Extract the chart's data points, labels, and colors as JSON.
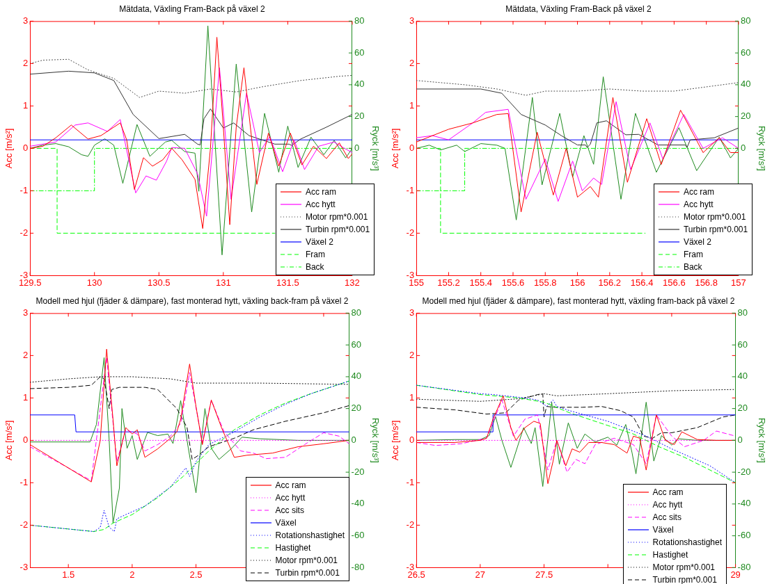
{
  "chart_data": [
    {
      "type": "line",
      "title": "Mätdata, Växling Fram-Back på växel 2",
      "ylabel": "Acc [m/s²]",
      "y2label": "Ryck [m/s³]",
      "xlim": [
        129.5,
        132
      ],
      "xticks": [
        129.5,
        130,
        130.5,
        131,
        131.5,
        132
      ],
      "ylim": [
        -3,
        3
      ],
      "yticks": [
        -3,
        -2,
        -1,
        0,
        1,
        2,
        3
      ],
      "y2lim": [
        -80,
        80
      ],
      "y2ticks": [
        0,
        20,
        40,
        60,
        80
      ],
      "legend": "bottom right",
      "marker": "none",
      "series": [
        {
          "name": "Acc ram",
          "color": "#ff0000",
          "line_style": "solid",
          "x": [
            129.5,
            129.6,
            129.7,
            129.82,
            129.95,
            130.05,
            130.15,
            130.2,
            130.25,
            130.31,
            130.38,
            130.45,
            130.53,
            130.6,
            130.68,
            130.78,
            130.84,
            130.9,
            130.95,
            131.0,
            131.05,
            131.1,
            131.16,
            131.21,
            131.26,
            131.35,
            131.43,
            131.52,
            131.61,
            131.7,
            131.8,
            131.9,
            131.97,
            132
          ],
          "values": [
            0,
            0.05,
            0.25,
            0.55,
            0.22,
            0.3,
            0.5,
            0.6,
            0.2,
            -0.97,
            -0.22,
            -0.42,
            -0.27,
            0,
            -0.27,
            -0.73,
            -1.89,
            0,
            2.62,
            0.5,
            -1.8,
            0.5,
            1.9,
            0.5,
            -0.85,
            0.36,
            -0.42,
            0.36,
            -0.39,
            0.05,
            -0.24,
            0.13,
            -0.24,
            -0.13
          ]
        },
        {
          "name": "Acc hytt",
          "color": "#ff00ff",
          "line_style": "solid",
          "x": [
            129.5,
            129.7,
            129.85,
            129.95,
            130.1,
            130.2,
            130.32,
            130.4,
            130.48,
            130.56,
            130.6,
            130.7,
            130.8,
            130.87,
            130.97,
            131.06,
            131.18,
            131.28,
            131.36,
            131.46,
            131.55,
            131.63,
            131.74,
            131.86,
            131.94,
            132
          ],
          "values": [
            0.05,
            0.15,
            0.55,
            0.6,
            0.4,
            0.68,
            -1.05,
            -0.65,
            -0.75,
            -0.3,
            0.02,
            0,
            -0.6,
            -1.6,
            1.9,
            -1.2,
            1.3,
            -0.1,
            0.28,
            -0.55,
            0.2,
            -0.5,
            0.05,
            0.15,
            0,
            -0.1
          ]
        },
        {
          "name": "Motor rpm*0.001",
          "color": "#404040",
          "line_style": "dotted",
          "x": [
            129.5,
            129.6,
            129.8,
            129.95,
            130.15,
            130.35,
            130.5,
            130.7,
            130.9,
            131.1,
            131.3,
            131.6,
            131.9,
            132
          ],
          "values": [
            2.0,
            2.08,
            2.1,
            1.85,
            1.65,
            1.2,
            1.35,
            1.3,
            1.4,
            1.33,
            1.45,
            1.6,
            1.7,
            1.72
          ]
        },
        {
          "name": "Turbin rpm*0.001",
          "color": "#333333",
          "line_style": "solid",
          "x": [
            129.5,
            129.8,
            130.0,
            130.15,
            130.3,
            130.5,
            130.7,
            130.8,
            130.82,
            130.85,
            130.9,
            131.0,
            131.08,
            131.2,
            131.4,
            131.51,
            131.53,
            131.6,
            131.8,
            132
          ],
          "values": [
            1.75,
            1.82,
            1.78,
            1.6,
            0.8,
            0.23,
            0.33,
            0.1,
            0.08,
            0.7,
            0.93,
            0.48,
            0.6,
            0.3,
            0.1,
            0.1,
            0.07,
            0.22,
            0.5,
            0.8
          ]
        },
        {
          "name": "Växel 2",
          "color": "#0000ff",
          "line_style": "solid",
          "x": [
            129.5,
            132
          ],
          "values": [
            0.2,
            0.2
          ]
        },
        {
          "name": "Fram",
          "color": "#00ff00",
          "line_style": "dashed",
          "x": [
            129.5,
            129.71,
            129.71,
            131.4
          ],
          "values": [
            0,
            0,
            -2,
            -2
          ]
        },
        {
          "name": "Back",
          "color": "#00ff00",
          "line_style": "dashdot",
          "x": [
            129.5,
            130.0,
            130.0,
            132
          ],
          "values": [
            -1,
            -1,
            0,
            0
          ]
        },
        {
          "color": "#1f8a1f",
          "line_style": "solid",
          "axis": "y2",
          "x": [
            129.5,
            129.6,
            129.7,
            129.8,
            129.9,
            129.95,
            130.0,
            130.08,
            130.15,
            130.22,
            130.33,
            130.43,
            130.55,
            130.6,
            130.7,
            130.78,
            130.81,
            130.88,
            130.99,
            131.1,
            131.22,
            131.32,
            131.43,
            131.5,
            131.58,
            131.68,
            131.78,
            131.86,
            131.95,
            132
          ],
          "values": [
            0,
            2,
            3,
            1,
            -4,
            -5,
            2,
            6,
            2,
            -22,
            15,
            -5,
            4,
            5,
            -2,
            -3,
            -27,
            77,
            -67,
            53,
            -40,
            22,
            -15,
            14,
            -12,
            7,
            -4,
            5,
            -6,
            0
          ]
        }
      ]
    },
    {
      "type": "line",
      "title": "Mätdata, Växling Fram-Back på växel 2",
      "ylabel": "Acc [m/s²]",
      "y2label": "Ryck [m/s³]",
      "xlim": [
        155,
        157
      ],
      "xticks": [
        155,
        155.2,
        155.4,
        155.6,
        155.8,
        156,
        156.2,
        156.4,
        156.6,
        156.8,
        157
      ],
      "ylim": [
        -3,
        3
      ],
      "yticks": [
        -3,
        -2,
        -1,
        0,
        1,
        2,
        3
      ],
      "y2lim": [
        -80,
        80
      ],
      "y2ticks": [
        0,
        20,
        40,
        60,
        80
      ],
      "legend": "bottom right",
      "marker": "none",
      "series": [
        {
          "name": "Acc ram",
          "color": "#ff0000",
          "line_style": "solid",
          "x": [
            155,
            155.2,
            155.35,
            155.5,
            155.57,
            155.65,
            155.75,
            155.85,
            155.93,
            156.0,
            156.08,
            156.13,
            156.22,
            156.31,
            156.43,
            156.52,
            156.64,
            156.78,
            156.88,
            156.95,
            157
          ],
          "values": [
            0.15,
            0.45,
            0.6,
            0.8,
            0.82,
            -1.5,
            0.38,
            -1.1,
            0,
            -1.15,
            -0.9,
            -1.15,
            1.2,
            -0.8,
            0.7,
            -0.38,
            0.9,
            -0.1,
            0.25,
            -0.1,
            -0.1
          ]
        },
        {
          "name": "Acc hytt",
          "color": "#ff00ff",
          "line_style": "solid",
          "x": [
            155,
            155.1,
            155.2,
            155.35,
            155.43,
            155.57,
            155.68,
            155.8,
            155.88,
            155.97,
            156.03,
            156.1,
            156.15,
            156.24,
            156.33,
            156.45,
            156.53,
            156.66,
            156.78,
            156.9,
            157
          ],
          "values": [
            0.25,
            0.3,
            0.2,
            0.6,
            0.85,
            0.92,
            -1.2,
            -0.25,
            -1.25,
            -0.3,
            -1.0,
            -0.7,
            -0.85,
            1.1,
            -0.5,
            0.6,
            -0.25,
            0.8,
            0,
            0.25,
            0
          ]
        },
        {
          "name": "Motor rpm*0.001",
          "color": "#404040",
          "line_style": "dotted",
          "x": [
            155,
            155.3,
            155.5,
            155.68,
            155.8,
            156.0,
            156.2,
            156.4,
            156.6,
            156.8,
            157
          ],
          "values": [
            1.6,
            1.5,
            1.4,
            1.25,
            1.35,
            1.35,
            1.4,
            1.35,
            1.35,
            1.45,
            1.55
          ]
        },
        {
          "name": "Turbin rpm*0.001",
          "color": "#333333",
          "line_style": "solid",
          "x": [
            155,
            155.4,
            155.53,
            155.65,
            155.8,
            155.9,
            156.0,
            156.05,
            156.06,
            156.08,
            156.12,
            156.18,
            156.3,
            156.38,
            156.5,
            156.67,
            156.68,
            156.7,
            156.85,
            157
          ],
          "values": [
            1.4,
            1.4,
            1.3,
            0.8,
            0.55,
            0.3,
            0.08,
            0.08,
            0.02,
            0.1,
            0.6,
            0.65,
            0.32,
            0.33,
            0.08,
            0.08,
            0.02,
            0.2,
            0.25,
            0.48
          ]
        },
        {
          "name": "Växel 2",
          "color": "#0000ff",
          "line_style": "solid",
          "x": [
            155,
            157
          ],
          "values": [
            0.2,
            0.2
          ]
        },
        {
          "name": "Fram",
          "color": "#00ff00",
          "line_style": "dashed",
          "x": [
            155,
            155.15,
            155.15,
            156.42
          ],
          "values": [
            0,
            0,
            -2,
            -2
          ]
        },
        {
          "name": "Back",
          "color": "#00ff00",
          "line_style": "dashdot",
          "x": [
            155,
            155.3,
            155.3,
            157
          ],
          "values": [
            -1,
            -1,
            0,
            0
          ]
        },
        {
          "color": "#1f8a1f",
          "line_style": "solid",
          "axis": "y2",
          "x": [
            155,
            155.08,
            155.15,
            155.25,
            155.3,
            155.4,
            155.5,
            155.55,
            155.62,
            155.72,
            155.78,
            155.89,
            155.97,
            156.04,
            156.1,
            156.16,
            156.27,
            156.36,
            156.49,
            156.63,
            156.74,
            156.88,
            156.95,
            157
          ],
          "values": [
            0,
            2,
            -1,
            2,
            -2,
            3,
            2,
            0,
            -45,
            32,
            -23,
            22,
            -18,
            8,
            -10,
            45,
            -32,
            22,
            -15,
            13,
            -14,
            7,
            -6,
            0
          ]
        }
      ]
    },
    {
      "type": "line",
      "title": "Modell med hjul (fjäder & dämpare), fast monterad hytt, växling back-fram på växel 2",
      "ylabel": "Acc [m/s²]",
      "y2label": "Ryck [m/s³]",
      "xlim": [
        1.2,
        3.7
      ],
      "xticks": [
        1.5,
        2,
        2.5,
        {
          "value": 3,
          "label": null
        },
        {
          "value": 3.5,
          "label": null
        }
      ],
      "ylim": [
        -3,
        3
      ],
      "yticks": [
        -3,
        -2,
        -1,
        0,
        1,
        2,
        3
      ],
      "y2lim": [
        -80,
        80
      ],
      "y2ticks": [
        -80,
        -60,
        -40,
        -20,
        0,
        20,
        40,
        60,
        80
      ],
      "legend": "bottom right",
      "marker": "none",
      "series": [
        {
          "name": "Acc ram",
          "color": "#ff0000",
          "line_style": "solid",
          "x": [
            1.2,
            1.68,
            1.75,
            1.8,
            1.85,
            1.88,
            1.95,
            2.0,
            2.04,
            2.1,
            2.2,
            2.3,
            2.35,
            2.38,
            2.45,
            2.5,
            2.55,
            2.62,
            2.7,
            2.8,
            2.9,
            3.1,
            3.3,
            3.5,
            3.7
          ],
          "values": [
            -0.1,
            -0.98,
            0,
            2.15,
            0.5,
            -0.6,
            0.3,
            0.15,
            0.25,
            -0.4,
            -0.2,
            0.05,
            0.2,
            0.5,
            1.8,
            0.8,
            -0.1,
            0.95,
            0.3,
            -0.4,
            -0.35,
            -0.3,
            -0.15,
            -0.08,
            0
          ]
        },
        {
          "name": "Acc hytt",
          "color": "#ff00ff",
          "line_style": "dotted",
          "x": [
            1.2,
            3.7
          ],
          "values": [
            0,
            0
          ]
        },
        {
          "name": "Acc sits",
          "color": "#ff00ff",
          "line_style": "dashed",
          "x": [
            1.2,
            1.68,
            1.8,
            1.88,
            1.95,
            2.04,
            2.1,
            2.2,
            2.3,
            2.38,
            2.45,
            2.55,
            2.62,
            2.72,
            2.85,
            2.95,
            3.05,
            3.2,
            3.35,
            3.5,
            3.62,
            3.7
          ],
          "values": [
            -0.15,
            -0.95,
            1.95,
            -0.5,
            0.25,
            0.15,
            -0.25,
            -0.1,
            0.1,
            0.4,
            1.6,
            -0.05,
            0.95,
            0.2,
            -0.25,
            -0.3,
            -0.43,
            -0.4,
            -0.1,
            0.18,
            0.1,
            -0.08
          ]
        },
        {
          "name": "Växel",
          "color": "#0000ff",
          "line_style": "solid",
          "x": [
            1.2,
            1.55,
            1.56,
            3.7
          ],
          "values": [
            0.6,
            0.6,
            0.2,
            0.2
          ]
        },
        {
          "name": "Rotationshastighet",
          "color": "#0000ff",
          "line_style": "dotted",
          "x": [
            1.2,
            1.7,
            1.75,
            1.78,
            1.82,
            1.86,
            1.88,
            1.95,
            2.1,
            2.3,
            2.42,
            2.45,
            2.5,
            2.6,
            2.8,
            3.0,
            3.2,
            3.4,
            3.7
          ],
          "values": [
            -2,
            -2.15,
            -2.05,
            -1.65,
            -2.05,
            -2.15,
            -1.85,
            -1.75,
            -1.55,
            -1.1,
            -0.65,
            -0.85,
            -0.5,
            -0.1,
            0.2,
            0.55,
            0.85,
            1.1,
            1.4
          ]
        },
        {
          "name": "Hastighet",
          "color": "#00ff00",
          "line_style": "dashed",
          "x": [
            1.2,
            1.7,
            1.78,
            1.85,
            2.0,
            2.2,
            2.4,
            2.6,
            2.8,
            3.0,
            3.2,
            3.4,
            3.7
          ],
          "values": [
            -2,
            -2.15,
            -2.1,
            -1.95,
            -1.75,
            -1.35,
            -0.85,
            -0.25,
            0.25,
            0.6,
            0.88,
            1.1,
            1.4
          ]
        },
        {
          "name": "Motor rpm*0.001",
          "color": "#000000",
          "line_style": "dotted",
          "x": [
            1.2,
            1.5,
            1.75,
            2.0,
            2.3,
            2.5,
            3.0,
            3.7
          ],
          "values": [
            1.37,
            1.45,
            1.5,
            1.5,
            1.45,
            1.35,
            1.35,
            1.32
          ]
        },
        {
          "name": "Turbin rpm*0.001",
          "color": "#000000",
          "line_style": "dashed",
          "x": [
            1.2,
            1.5,
            1.68,
            1.75,
            1.78,
            1.82,
            1.84,
            1.9,
            2.1,
            2.2,
            2.35,
            2.43,
            2.47,
            2.52,
            2.6,
            2.8,
            2.95,
            3.2,
            3.5,
            3.7
          ],
          "values": [
            1.22,
            1.25,
            1.3,
            1.5,
            1.45,
            0.75,
            1.2,
            1.25,
            1.25,
            1.2,
            0.75,
            0.3,
            -0.45,
            -0.35,
            -0.15,
            0.05,
            0.25,
            0.45,
            0.65,
            0.82
          ]
        },
        {
          "color": "#1f8a1f",
          "line_style": "solid",
          "axis": "y2",
          "x": [
            1.2,
            1.67,
            1.72,
            1.78,
            1.82,
            1.85,
            1.9,
            1.92,
            1.96,
            2.0,
            2.04,
            2.12,
            2.2,
            2.28,
            2.32,
            2.38,
            2.44,
            2.5,
            2.57,
            2.62,
            2.68,
            2.78,
            2.86,
            3.0,
            3.3,
            3.7
          ],
          "values": [
            -1,
            -1,
            10,
            52,
            0,
            -52,
            -30,
            20,
            -5,
            3,
            -12,
            5,
            3,
            4,
            -2,
            25,
            -5,
            -33,
            20,
            -5,
            -12,
            -5,
            2,
            1,
            0,
            0
          ]
        }
      ]
    },
    {
      "type": "line",
      "title": "Modell med hjul (fjäder & dämpare), fast monterad hytt, växling fram-back på växel 2",
      "ylabel": "Acc [m/s²]",
      "y2label": "Ryck [m/s³]",
      "xlim": [
        26.5,
        29
      ],
      "xticks": [
        26.5,
        27,
        27.5,
        {
          "value": 28,
          "label": null
        },
        {
          "value": 28.5,
          "label": null
        },
        29
      ],
      "ylim": [
        -3,
        3
      ],
      "yticks": [
        -3,
        -2,
        -1,
        0,
        1,
        2,
        3
      ],
      "y2lim": [
        -80,
        80
      ],
      "y2ticks": [
        -80,
        -60,
        -40,
        -20,
        0,
        20,
        40,
        60,
        80
      ],
      "legend": "bottom right",
      "marker": "none",
      "series": [
        {
          "name": "Acc ram",
          "color": "#ff0000",
          "line_style": "solid",
          "x": [
            26.5,
            26.8,
            27.0,
            27.05,
            27.1,
            27.18,
            27.24,
            27.28,
            27.35,
            27.42,
            27.47,
            27.5,
            27.53,
            27.57,
            27.6,
            27.67,
            27.72,
            27.78,
            27.85,
            27.95,
            28.05,
            28.15,
            28.2,
            28.25,
            28.3,
            28.38,
            28.45,
            28.52,
            28.58,
            28.7,
            28.85,
            29
          ],
          "values": [
            -0.05,
            -0.05,
            0,
            0.05,
            0.5,
            1.05,
            0.3,
            0,
            0.3,
            0.45,
            0.4,
            -0.3,
            -1.02,
            -0.5,
            0,
            -0.6,
            -0.2,
            -0.28,
            -0.05,
            -0.05,
            -0.1,
            -0.3,
            0.1,
            0.05,
            -0.7,
            0.6,
            0,
            -0.1,
            0.2,
            0.02,
            0,
            0
          ]
        },
        {
          "name": "Acc hytt",
          "color": "#ff00ff",
          "line_style": "dotted",
          "x": [
            26.5,
            29
          ],
          "values": [
            0,
            0
          ]
        },
        {
          "name": "Acc sits",
          "color": "#ff00ff",
          "line_style": "dashed",
          "x": [
            26.5,
            26.65,
            26.85,
            27.05,
            27.17,
            27.26,
            27.35,
            27.45,
            27.53,
            27.6,
            27.68,
            27.75,
            27.82,
            27.9,
            28.05,
            28.2,
            28.3,
            28.38,
            28.5,
            28.6,
            28.75,
            28.85,
            29
          ],
          "values": [
            -0.05,
            -0.12,
            -0.08,
            0.05,
            0.95,
            0.1,
            0.5,
            0.6,
            -0.7,
            0,
            -0.75,
            -0.45,
            -0.55,
            -0.1,
            0.05,
            -0.1,
            -0.55,
            0.6,
            0.1,
            -0.15,
            0,
            0.22,
            0.1
          ]
        },
        {
          "name": "Växel",
          "color": "#0000ff",
          "line_style": "solid",
          "x": [
            26.5,
            27.1,
            27.1,
            29
          ],
          "values": [
            0.2,
            0.2,
            0.6,
            0.6
          ]
        },
        {
          "name": "Rotationshastighet",
          "color": "#0000ff",
          "line_style": "dotted",
          "x": [
            26.5,
            27.0,
            27.1,
            27.35,
            27.45,
            27.5,
            27.52,
            27.57,
            27.6,
            27.7,
            28.0,
            28.3,
            28.5,
            28.8,
            29
          ],
          "values": [
            1.3,
            1.1,
            1.08,
            1.0,
            0.95,
            0.85,
            0.8,
            0.95,
            0.8,
            0.7,
            0.45,
            0.1,
            -0.2,
            -0.6,
            -1.0
          ]
        },
        {
          "name": "Hastighet",
          "color": "#00ff00",
          "line_style": "dashed",
          "x": [
            26.5,
            27.0,
            27.3,
            27.5,
            27.7,
            28.0,
            28.2,
            28.4,
            28.6,
            28.8,
            29
          ],
          "values": [
            1.3,
            1.08,
            1.0,
            0.9,
            0.65,
            0.35,
            0.15,
            -0.15,
            -0.4,
            -0.7,
            -1.0
          ]
        },
        {
          "name": "Motor rpm*0.001",
          "color": "#000000",
          "line_style": "dotted",
          "x": [
            26.5,
            27.0,
            27.3,
            27.5,
            27.6,
            28.0,
            28.5,
            29
          ],
          "values": [
            0.97,
            0.92,
            0.98,
            1.1,
            1.05,
            1.1,
            1.17,
            1.2
          ]
        },
        {
          "name": "Turbin rpm*0.001",
          "color": "#000000",
          "line_style": "dashed",
          "x": [
            26.5,
            26.8,
            27.05,
            27.2,
            27.3,
            27.45,
            27.49,
            27.5,
            27.52,
            27.58,
            27.8,
            27.95,
            28.1,
            28.2,
            28.28,
            28.35,
            28.42,
            28.5,
            28.7,
            28.9,
            29
          ],
          "values": [
            0.78,
            0.72,
            0.62,
            0.65,
            0.95,
            1.08,
            1.1,
            0.55,
            0.8,
            0.78,
            0.78,
            0.8,
            0.7,
            0.55,
            0.1,
            0.05,
            0.18,
            0.18,
            0.3,
            0.55,
            0.6
          ]
        },
        {
          "color": "#1f8a1f",
          "line_style": "solid",
          "axis": "y2",
          "x": [
            26.5,
            26.8,
            27.0,
            27.07,
            27.12,
            27.17,
            27.24,
            27.3,
            27.34,
            27.4,
            27.43,
            27.49,
            27.56,
            27.62,
            27.69,
            27.76,
            27.82,
            27.9,
            28.0,
            28.07,
            28.14,
            28.19,
            28.22,
            28.3,
            28.36,
            28.42,
            28.5,
            28.55,
            28.7,
            29
          ],
          "values": [
            0,
            0.5,
            0.5,
            3,
            15,
            0,
            -17,
            -2,
            8,
            -2,
            8,
            -29,
            24,
            -15,
            11,
            -5,
            4,
            -1,
            2,
            -3,
            10,
            -8,
            -21,
            24,
            -13,
            3,
            -3,
            1,
            0,
            0
          ]
        }
      ]
    }
  ]
}
